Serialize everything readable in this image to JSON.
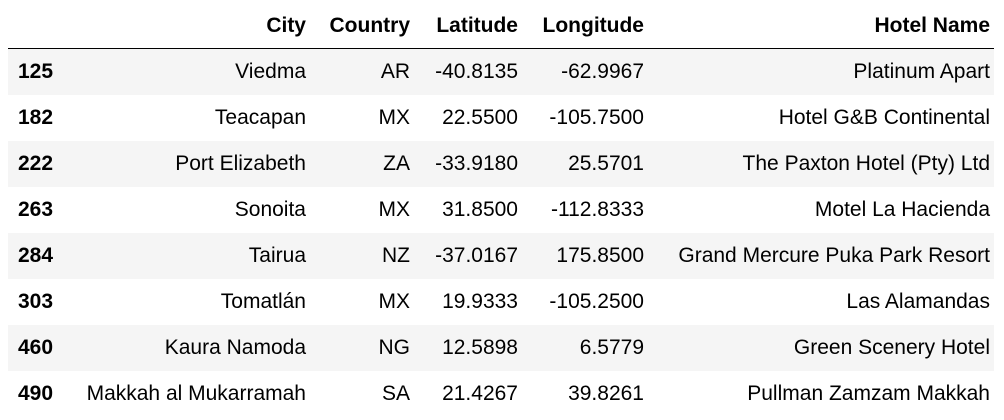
{
  "table": {
    "columns": [
      "",
      "City",
      "Country",
      "Latitude",
      "Longitude",
      "Hotel Name"
    ],
    "rows": [
      {
        "index": "125",
        "city": "Viedma",
        "country": "AR",
        "lat": "-40.8135",
        "lng": "-62.9967",
        "hotel": "Platinum Apart"
      },
      {
        "index": "182",
        "city": "Teacapan",
        "country": "MX",
        "lat": "22.5500",
        "lng": "-105.7500",
        "hotel": "Hotel G&B Continental"
      },
      {
        "index": "222",
        "city": "Port Elizabeth",
        "country": "ZA",
        "lat": "-33.9180",
        "lng": "25.5701",
        "hotel": "The Paxton Hotel (Pty) Ltd"
      },
      {
        "index": "263",
        "city": "Sonoita",
        "country": "MX",
        "lat": "31.8500",
        "lng": "-112.8333",
        "hotel": "Motel La Hacienda"
      },
      {
        "index": "284",
        "city": "Tairua",
        "country": "NZ",
        "lat": "-37.0167",
        "lng": "175.8500",
        "hotel": "Grand Mercure Puka Park Resort"
      },
      {
        "index": "303",
        "city": "Tomatlán",
        "country": "MX",
        "lat": "19.9333",
        "lng": "-105.2500",
        "hotel": "Las Alamandas"
      },
      {
        "index": "460",
        "city": "Kaura Namoda",
        "country": "NG",
        "lat": "12.5898",
        "lng": "6.5779",
        "hotel": "Green Scenery Hotel"
      },
      {
        "index": "490",
        "city": "Makkah al Mukarramah",
        "country": "SA",
        "lat": "21.4267",
        "lng": "39.8261",
        "hotel": "Pullman Zamzam Makkah"
      }
    ]
  }
}
